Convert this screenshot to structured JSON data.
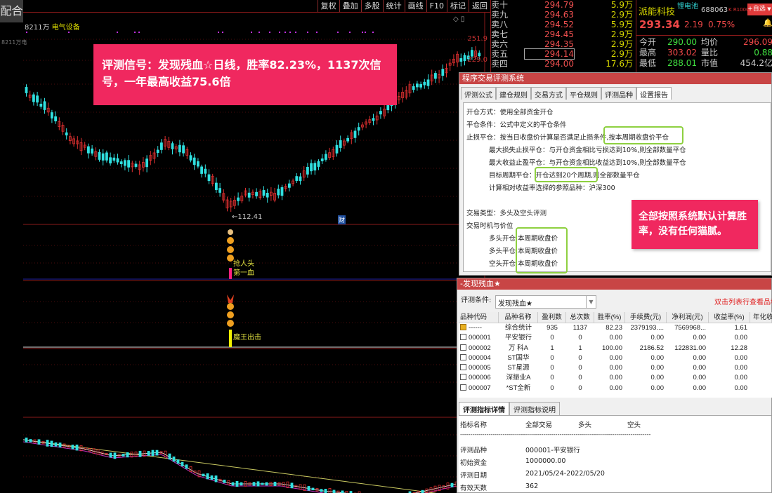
{
  "left_panel": {
    "label": "配合"
  },
  "toolbar": {
    "buttons": [
      "复权",
      "叠加",
      "多股",
      "统计",
      "画线",
      "F10",
      "标记",
      "返回"
    ]
  },
  "chart": {
    "title_prefix": "8211万",
    "sector": "电气设备",
    "side_label": "8211万电",
    "axis_labels": [
      "251.9",
      "229.0"
    ],
    "low_label": "←112.41",
    "cai_badge": "财",
    "indicator1_text": [
      "抢人头",
      "第一血"
    ],
    "indicator2_text": "魔王出击",
    "colors": {
      "up": "#e03030",
      "down": "#30e0e0",
      "grid": "#8a1a1a"
    }
  },
  "callout_main": "评测信号：发现残血☆日线，胜率82.23%，1137次信号，一年最高收益75.6倍",
  "order_book": [
    {
      "label": "卖十",
      "price": "294.79",
      "vol": "5.9万"
    },
    {
      "label": "卖九",
      "price": "294.63",
      "vol": "2.9万"
    },
    {
      "label": "卖八",
      "price": "294.52",
      "vol": "5.9万"
    },
    {
      "label": "卖七",
      "price": "294.45",
      "vol": "2.9万"
    },
    {
      "label": "卖六",
      "price": "294.35",
      "vol": "2.9万"
    },
    {
      "label": "卖五",
      "price": "294.14",
      "vol": "2.9万"
    },
    {
      "label": "卖四",
      "price": "294.00",
      "vol": "17.6万"
    }
  ],
  "stock": {
    "name": "派能科技",
    "concept": "锂电池",
    "code": "688063",
    "tag": "K R1000",
    "watch_button": "+自选",
    "price": "293.34",
    "change": "2.19",
    "pct": "0.75%",
    "stats": [
      {
        "label": "今开",
        "value": "290.00",
        "label2": "均价",
        "value2": "296.09"
      },
      {
        "label": "最高",
        "value": "303.02",
        "label2": "量比",
        "value2": "0.88"
      },
      {
        "label": "最低",
        "value": "288.01",
        "label2": "市值",
        "value2": "454.2亿"
      }
    ]
  },
  "dialog1": {
    "title": "程序交易评测系统",
    "tabs": [
      "评测公式",
      "建仓规则",
      "交易方式",
      "平仓规则",
      "评测品种",
      "设置报告"
    ],
    "active_tab": "设置报告",
    "lines": [
      "开仓方式：使用全部资金开仓",
      "平仓条件：公式中定义的平仓条件",
      "止损平仓：按当日收盘价计算是否满足止损条件,按本周期收盘价平仓",
      "最大损失止损平仓：与开仓资金相比亏损达到10%,则全部数量平仓",
      "最大收益止盈平仓：与开仓资金相比收益达到10%,则全部数量平仓",
      "目标周期平仓：开仓达到20个周期,则全部数量平仓",
      "计算相对收益率选择的参照品种：沪深300",
      "交易类型：多头及空头评测",
      "交易时机与价位",
      "多头开仓,本周期收盘价",
      "多头平仓,本周期收盘价",
      "空头开仓,本周期收盘价"
    ]
  },
  "callout_side": "全部按照系统默认计算胜率，没有任何猫腻。",
  "dialog2": {
    "title": "-发现残血★",
    "condition_label": "评测条件:",
    "condition_value": "发现残血★",
    "hint": "双击列表行查看品种",
    "columns": [
      "品种代码",
      "品种名称",
      "盈利数",
      "总次数",
      "胜率(%)",
      "手续费(元)",
      "净利润(元)",
      "收益率(%)",
      "年化收"
    ],
    "rows": [
      [
        "------",
        "综合统计",
        "935",
        "1137",
        "82.23",
        "2379193....",
        "7569968...",
        "1.61"
      ],
      [
        "000001",
        "平安银行",
        "0",
        "0",
        "0.00",
        "0.00",
        "0.00",
        "0.00"
      ],
      [
        "000002",
        "万 科A",
        "1",
        "1",
        "100.00",
        "2186.52",
        "122831.00",
        "12.28"
      ],
      [
        "000004",
        "ST国华",
        "0",
        "0",
        "0.00",
        "0.00",
        "0.00",
        "0.00"
      ],
      [
        "000005",
        "ST星源",
        "0",
        "0",
        "0.00",
        "0.00",
        "0.00",
        "0.00"
      ],
      [
        "000006",
        "深振业A",
        "0",
        "0",
        "0.00",
        "0.00",
        "0.00",
        "0.00"
      ],
      [
        "000007",
        "*ST全新",
        "0",
        "0",
        "0.00",
        "0.00",
        "0.00",
        "0.00"
      ]
    ],
    "detail_tabs": [
      "评测指标详情",
      "评测指标说明"
    ],
    "detail_header": [
      "指标名称",
      "全部交易",
      "多头",
      "空头"
    ],
    "separator": "----------------------------------------------------------------------------------------------",
    "details": [
      {
        "label": "评测品种",
        "value": "000001-平安银行"
      },
      {
        "label": "初始资金",
        "value": "1000000.00"
      },
      {
        "label": "评测日期",
        "value": "2021/05/24-2022/05/20"
      },
      {
        "label": "有效天数",
        "value": "362"
      }
    ]
  }
}
